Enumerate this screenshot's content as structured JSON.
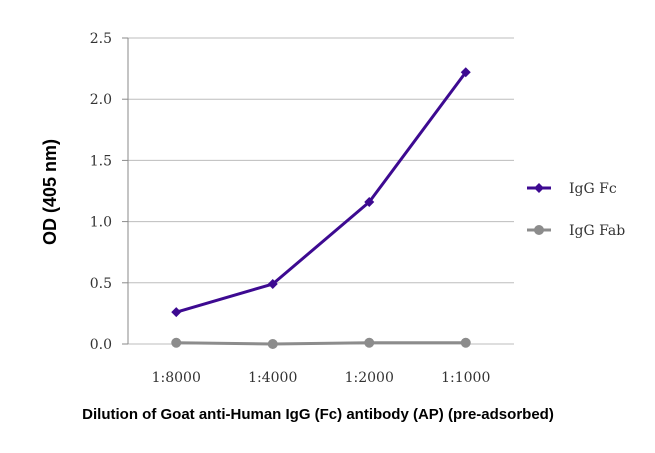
{
  "chart_data": {
    "type": "line",
    "title": "",
    "xlabel": "Dilution of Goat anti-Human IgG (Fc) antibody (AP) (pre-adsorbed)",
    "ylabel": "OD (405 nm)",
    "categories": [
      "1:8000",
      "1:4000",
      "1:2000",
      "1:1000"
    ],
    "ylim": [
      0,
      2.5
    ],
    "yticks": [
      "0.0",
      "0.5",
      "1.0",
      "1.5",
      "2.0",
      "2.5"
    ],
    "grid": "horizontal",
    "legend_position": "right",
    "series": [
      {
        "name": "IgG Fc",
        "values": [
          0.26,
          0.49,
          1.16,
          2.22
        ],
        "color": "#3d0a91",
        "marker": "diamond"
      },
      {
        "name": "IgG Fab",
        "values": [
          0.01,
          0.0,
          0.01,
          0.01
        ],
        "color": "#8c8c8c",
        "marker": "circle"
      }
    ]
  }
}
